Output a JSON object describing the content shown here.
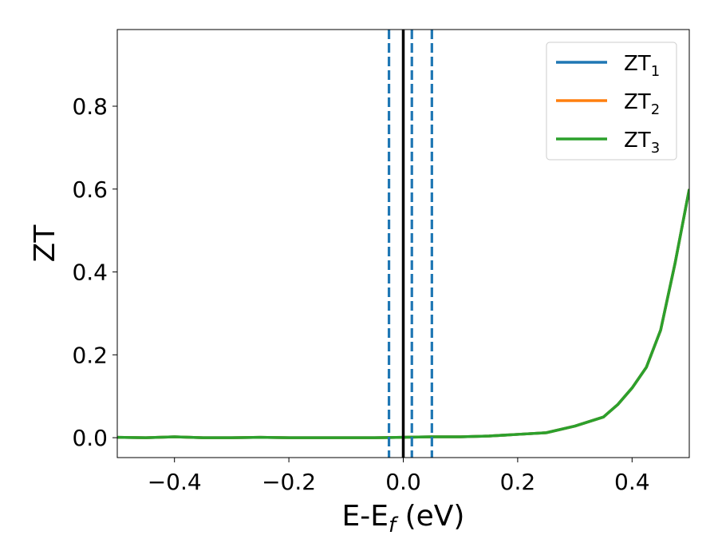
{
  "chart_data": {
    "type": "line",
    "xlabel": {
      "main": "E-E",
      "sub": "f",
      "tail": " (eV)"
    },
    "ylabel": "ZT",
    "xlim": [
      -0.5,
      0.5
    ],
    "ylim": [
      -0.048,
      0.985
    ],
    "xticks": [
      -0.4,
      -0.2,
      0.0,
      0.2,
      0.4
    ],
    "xtick_labels": [
      "−0.4",
      "−0.2",
      "0.0",
      "0.2",
      "0.4"
    ],
    "yticks": [
      0.0,
      0.2,
      0.4,
      0.6,
      0.8
    ],
    "ytick_labels": [
      "0.0",
      "0.2",
      "0.4",
      "0.6",
      "0.8"
    ],
    "grid": false,
    "legend_position": "top-right",
    "series": [
      {
        "name": "ZT",
        "subscript": "1",
        "color": "#1f77b4",
        "x": [
          -0.5,
          -0.45,
          -0.4,
          -0.35,
          -0.3,
          -0.25,
          -0.2,
          -0.15,
          -0.1,
          -0.05,
          0.0,
          0.05,
          0.1,
          0.15,
          0.2,
          0.25,
          0.3,
          0.35,
          0.375,
          0.4,
          0.425,
          0.45,
          0.475,
          0.5
        ],
        "y": [
          0.001,
          0.0,
          0.002,
          0.0,
          0.0,
          0.001,
          0.0,
          0.0,
          0.0,
          0.0,
          0.001,
          0.002,
          0.002,
          0.004,
          0.008,
          0.012,
          0.028,
          0.05,
          0.08,
          0.12,
          0.17,
          0.26,
          0.42,
          0.6
        ]
      },
      {
        "name": "ZT",
        "subscript": "2",
        "color": "#ff7f0e",
        "x": [
          -0.5,
          -0.45,
          -0.4,
          -0.35,
          -0.3,
          -0.25,
          -0.2,
          -0.15,
          -0.1,
          -0.05,
          0.0,
          0.05,
          0.1,
          0.15,
          0.2,
          0.25,
          0.3,
          0.35,
          0.375,
          0.4,
          0.425,
          0.45,
          0.475,
          0.5
        ],
        "y": [
          0.001,
          0.0,
          0.002,
          0.0,
          0.0,
          0.001,
          0.0,
          0.0,
          0.0,
          0.0,
          0.001,
          0.002,
          0.002,
          0.004,
          0.008,
          0.012,
          0.028,
          0.05,
          0.08,
          0.12,
          0.17,
          0.26,
          0.42,
          0.6
        ]
      },
      {
        "name": "ZT",
        "subscript": "3",
        "color": "#2ca02c",
        "x": [
          -0.5,
          -0.45,
          -0.4,
          -0.35,
          -0.3,
          -0.25,
          -0.2,
          -0.15,
          -0.1,
          -0.05,
          0.0,
          0.05,
          0.1,
          0.15,
          0.2,
          0.25,
          0.3,
          0.35,
          0.375,
          0.4,
          0.425,
          0.45,
          0.475,
          0.5
        ],
        "y": [
          0.001,
          0.0,
          0.002,
          0.0,
          0.0,
          0.001,
          0.0,
          0.0,
          0.0,
          0.0,
          0.001,
          0.002,
          0.002,
          0.004,
          0.008,
          0.012,
          0.028,
          0.05,
          0.08,
          0.12,
          0.17,
          0.26,
          0.42,
          0.6
        ]
      }
    ],
    "vertical_lines": [
      {
        "x": 0.0,
        "style": "solid",
        "color": "#000000"
      },
      {
        "x": -0.025,
        "style": "dashed",
        "color": "#1f77b4"
      },
      {
        "x": 0.015,
        "style": "dashed",
        "color": "#1f77b4"
      },
      {
        "x": 0.05,
        "style": "dashed",
        "color": "#1f77b4"
      }
    ]
  }
}
